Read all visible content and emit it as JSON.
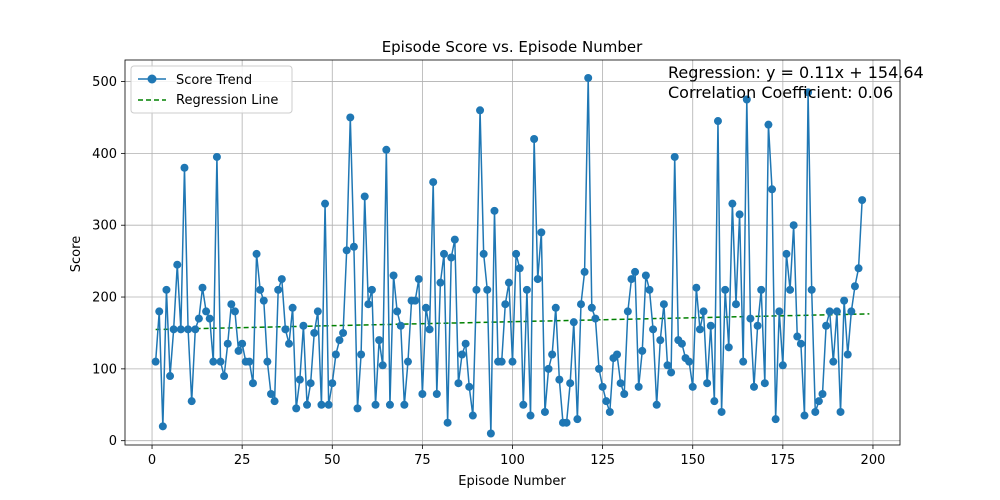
{
  "chart_data": {
    "type": "line",
    "title": "Episode Score vs. Episode Number",
    "xlabel": "Episode Number",
    "ylabel": "Score",
    "xlim": [
      -7.5,
      207.5
    ],
    "ylim": [
      -6,
      530
    ],
    "xticks": [
      0,
      25,
      50,
      75,
      100,
      125,
      150,
      175,
      200
    ],
    "yticks": [
      0,
      100,
      200,
      300,
      400,
      500
    ],
    "grid": true,
    "legend_position": "top-left",
    "colors": {
      "score": "#1f77b4",
      "regression": "#008000",
      "grid": "#b0b0b0"
    },
    "legend": [
      {
        "label": "Score Trend",
        "style": "line-marker"
      },
      {
        "label": "Regression Line",
        "style": "dashed"
      }
    ],
    "annotations": [
      "Regression: y = 0.11x + 154.64",
      "Correlation Coefficient: 0.06"
    ],
    "regression": {
      "slope": 0.11,
      "intercept": 154.64,
      "x_range": [
        1,
        199
      ]
    },
    "series": [
      {
        "name": "Score Trend",
        "x_start": 1,
        "values": [
          110,
          180,
          20,
          210,
          90,
          155,
          245,
          155,
          380,
          155,
          55,
          155,
          170,
          213,
          180,
          170,
          110,
          395,
          110,
          90,
          135,
          190,
          180,
          125,
          135,
          110,
          110,
          80,
          260,
          210,
          195,
          110,
          65,
          55,
          210,
          225,
          155,
          135,
          185,
          45,
          85,
          160,
          50,
          80,
          150,
          180,
          50,
          330,
          50,
          80,
          120,
          140,
          150,
          265,
          450,
          270,
          45,
          120,
          340,
          190,
          210,
          50,
          140,
          105,
          405,
          50,
          230,
          180,
          160,
          50,
          110,
          195,
          195,
          225,
          65,
          185,
          155,
          360,
          65,
          220,
          260,
          25,
          255,
          280,
          80,
          120,
          135,
          75,
          35,
          210,
          460,
          260,
          210,
          10,
          320,
          110,
          110,
          190,
          220,
          110,
          260,
          240,
          50,
          210,
          35,
          420,
          225,
          290,
          40,
          100,
          120,
          185,
          85,
          25,
          25,
          80,
          165,
          30,
          190,
          235,
          505,
          185,
          170,
          100,
          75,
          55,
          40,
          115,
          120,
          80,
          65,
          180,
          225,
          235,
          75,
          125,
          230,
          210,
          155,
          50,
          140,
          190,
          105,
          95,
          395,
          140,
          135,
          115,
          110,
          75,
          213,
          155,
          180,
          80,
          160,
          55,
          445,
          40,
          210,
          130,
          330,
          190,
          315,
          110,
          475,
          170,
          75,
          160,
          210,
          80,
          440,
          350,
          30,
          180,
          105,
          260,
          210,
          300,
          145,
          135,
          35,
          485,
          210,
          40,
          55,
          65,
          160,
          180,
          110,
          180,
          40,
          195,
          120,
          180,
          215,
          240,
          335
        ]
      }
    ]
  }
}
